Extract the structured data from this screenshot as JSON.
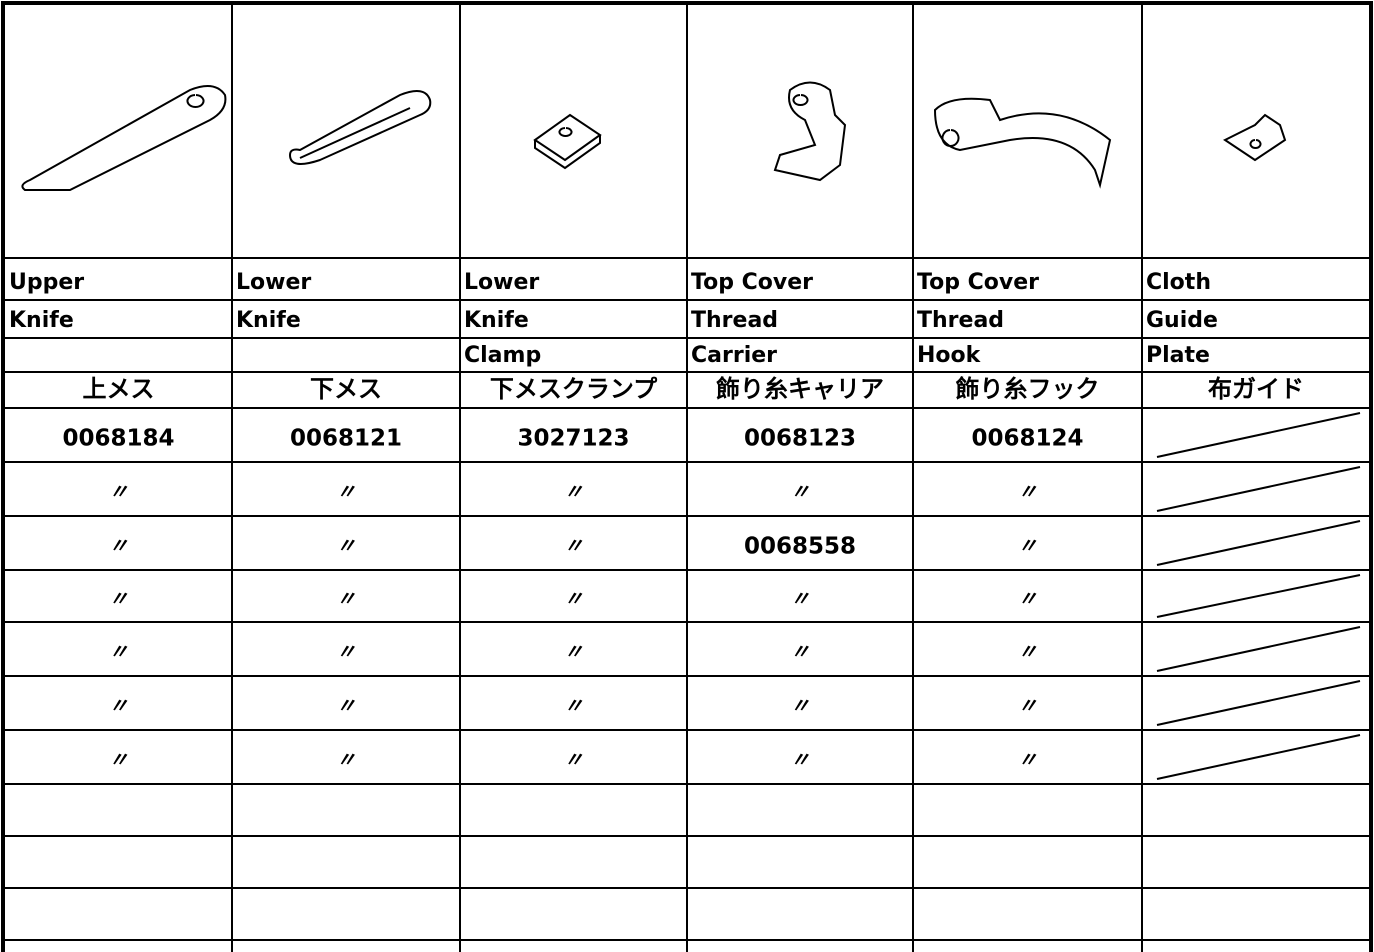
{
  "table": {
    "columns": [
      {
        "name": [
          "Upper",
          "Knife"
        ],
        "japanese": "上メス",
        "part_numbers": [
          "0068184",
          "〃",
          "〃",
          "〃",
          "〃",
          "〃",
          "〃"
        ]
      },
      {
        "name": [
          "Lower",
          "Knife"
        ],
        "japanese": "下メス",
        "part_numbers": [
          "0068121",
          "〃",
          "〃",
          "〃",
          "〃",
          "〃",
          "〃"
        ]
      },
      {
        "name": [
          "Lower",
          "Knife",
          "Clamp"
        ],
        "japanese": "下メスクランプ",
        "part_numbers": [
          "3027123",
          "〃",
          "〃",
          "〃",
          "〃",
          "〃",
          "〃"
        ]
      },
      {
        "name": [
          "Top Cover",
          "Thread",
          "Carrier"
        ],
        "japanese": "飾り糸キャリア",
        "part_numbers": [
          "0068123",
          "〃",
          "0068558",
          "〃",
          "〃",
          "〃",
          "〃"
        ]
      },
      {
        "name": [
          "Top Cover",
          "Thread",
          "Hook"
        ],
        "japanese": "飾り糸フック",
        "part_numbers": [
          "0068124",
          "〃",
          "〃",
          "〃",
          "〃",
          "〃",
          "〃"
        ]
      },
      {
        "name": [
          "Cloth",
          "Guide",
          "Plate"
        ],
        "japanese": "布ガイド"
      }
    ]
  }
}
